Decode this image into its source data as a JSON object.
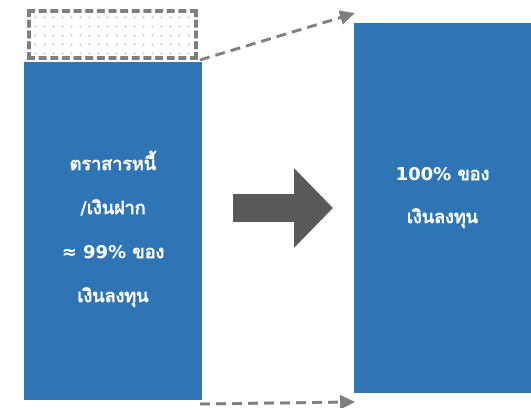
{
  "colors": {
    "box": "#2f75b5",
    "arrow": "#595959",
    "dashed": "#7f7f7f"
  },
  "left_box": {
    "lines": [
      "ตราสารหนี้",
      "/เงินฝาก",
      "≈ 99% ของ",
      "เงินลงทุน"
    ]
  },
  "right_box": {
    "lines": [
      "100% ของ",
      "เงินลงทุน"
    ]
  },
  "icons": {
    "center_arrow": "right-arrow-icon"
  }
}
